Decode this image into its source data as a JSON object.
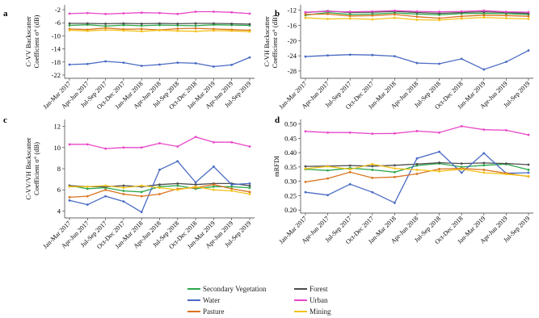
{
  "chart_data": [
    {
      "panel_label": "a",
      "type": "line",
      "ylabel": "C-VV Backscatter Coefficient σ° (dB)",
      "yticks": [
        -2,
        -6,
        -10,
        -14,
        -18,
        -22
      ],
      "ylim": [
        -22.5,
        -1
      ],
      "x": [
        "Jan-Mar 2017",
        "Apr-Jun 2017",
        "Jul-Sep 2017",
        "Oct-Dec 2017",
        "Jan-Mar 2018",
        "Apr-Jun 2018",
        "Jul-Sep 2018",
        "Oct-Dec 2018",
        "Jan-Mar 2019",
        "Apr-Jun 2019",
        "Jul-Sep 2019"
      ],
      "series": [
        {
          "name": "Secondary Vegetation",
          "color": "#2aa84a",
          "values": [
            -6.8,
            -6.6,
            -7.0,
            -6.7,
            -6.9,
            -6.7,
            -6.8,
            -6.9,
            -6.6,
            -6.7,
            -6.8
          ]
        },
        {
          "name": "Forest",
          "color": "#4d4d4d",
          "values": [
            -6.2,
            -6.2,
            -6.3,
            -6.2,
            -6.3,
            -6.2,
            -6.3,
            -6.2,
            -6.2,
            -6.3,
            -6.4
          ]
        },
        {
          "name": "Water",
          "color": "#4a6bc4",
          "values": [
            -18.8,
            -18.6,
            -17.8,
            -18.2,
            -19.2,
            -18.8,
            -18.2,
            -18.4,
            -19.4,
            -18.9,
            -16.6
          ]
        },
        {
          "name": "Urban",
          "color": "#e846c8",
          "values": [
            -3.2,
            -3.0,
            -3.3,
            -3.1,
            -2.9,
            -3.0,
            -3.3,
            -2.6,
            -2.6,
            -2.8,
            -3.2
          ]
        },
        {
          "name": "Pasture",
          "color": "#d9741e",
          "values": [
            -7.9,
            -8.1,
            -7.6,
            -8.0,
            -7.9,
            -8.2,
            -7.8,
            -7.7,
            -7.9,
            -8.1,
            -8.3
          ]
        },
        {
          "name": "Mining",
          "color": "#f2c21b",
          "values": [
            -8.3,
            -8.5,
            -8.2,
            -8.4,
            -8.6,
            -8.3,
            -8.5,
            -8.6,
            -8.4,
            -8.5,
            -8.7
          ]
        }
      ]
    },
    {
      "panel_label": "b",
      "type": "line",
      "ylabel": "C-VH Backscatter Coefficient σ° (dB)",
      "yticks": [
        -12,
        -16,
        -20,
        -24,
        -28
      ],
      "ylim": [
        -29.5,
        -11
      ],
      "x": [
        "Jan-Mar 2017",
        "Apr-Jun 2017",
        "Jul-Sep 2017",
        "Oct-Dec 2017",
        "Jan-Mar 2018",
        "Apr-Jun 2018",
        "Jul-Sep 2018",
        "Oct-Dec 2018",
        "Jan-Mar 2019",
        "Apr-Jun 2019",
        "Jul-Sep 2019"
      ],
      "series": [
        {
          "name": "Secondary Vegetation",
          "color": "#2aa84a",
          "values": [
            -13.3,
            -12.6,
            -13.1,
            -13.0,
            -12.7,
            -13.0,
            -13.2,
            -12.9,
            -12.8,
            -12.9,
            -13.1
          ]
        },
        {
          "name": "Forest",
          "color": "#4d4d4d",
          "values": [
            -12.6,
            -12.2,
            -12.6,
            -12.5,
            -12.3,
            -12.6,
            -12.8,
            -12.6,
            -12.4,
            -12.6,
            -12.8
          ]
        },
        {
          "name": "Water",
          "color": "#4a6bc4",
          "values": [
            -24.2,
            -23.9,
            -23.7,
            -23.8,
            -24.1,
            -25.9,
            -26.1,
            -24.8,
            -27.6,
            -25.6,
            -22.6
          ]
        },
        {
          "name": "Urban",
          "color": "#e846c8",
          "values": [
            -12.5,
            -12.3,
            -12.4,
            -12.3,
            -12.1,
            -12.3,
            -12.4,
            -12.3,
            -12.1,
            -12.4,
            -12.5
          ]
        },
        {
          "name": "Pasture",
          "color": "#d9741e",
          "values": [
            -13.1,
            -13.0,
            -13.5,
            -13.4,
            -13.1,
            -13.7,
            -14.1,
            -13.6,
            -13.3,
            -13.4,
            -13.6
          ]
        },
        {
          "name": "Mining",
          "color": "#f2c21b",
          "values": [
            -14.0,
            -14.3,
            -14.2,
            -14.4,
            -14.0,
            -14.5,
            -14.6,
            -14.2,
            -13.9,
            -14.1,
            -14.3
          ]
        }
      ]
    },
    {
      "panel_label": "c",
      "type": "line",
      "ylabel": "C-VV/VH Backscatter Coefficient σ° (dB)",
      "yticks": [
        12,
        10,
        8,
        6,
        4
      ],
      "ylim": [
        3.5,
        12.5
      ],
      "x": [
        "Jan-Mar 2017",
        "Apr-Jun 2017",
        "Jul-Sep 2017",
        "Oct-Dec 2017",
        "Jan-Mar 2018",
        "Apr-Jun 2018",
        "Jul-Sep 2018",
        "Oct-Dec 2018",
        "Jan-Mar 2019",
        "Apr-Jun 2019",
        "Jul-Sep 2019"
      ],
      "series": [
        {
          "name": "Secondary Vegetation",
          "color": "#2aa84a",
          "values": [
            6.4,
            6.1,
            6.2,
            5.9,
            5.8,
            6.3,
            6.4,
            6.1,
            6.3,
            6.3,
            6.2
          ]
        },
        {
          "name": "Forest",
          "color": "#4d4d4d",
          "values": [
            6.4,
            6.3,
            6.3,
            6.4,
            6.3,
            6.5,
            6.6,
            6.5,
            6.6,
            6.6,
            6.4
          ]
        },
        {
          "name": "Water",
          "color": "#4a6bc4",
          "values": [
            5.0,
            4.6,
            5.4,
            4.9,
            3.9,
            7.9,
            8.7,
            6.7,
            8.2,
            6.5,
            6.6
          ]
        },
        {
          "name": "Urban",
          "color": "#e846c8",
          "values": [
            10.3,
            10.3,
            9.9,
            10.0,
            10.0,
            10.4,
            10.1,
            11.0,
            10.5,
            10.5,
            10.1
          ]
        },
        {
          "name": "Pasture",
          "color": "#d9741e",
          "values": [
            5.3,
            5.4,
            6.0,
            5.6,
            5.4,
            5.6,
            6.1,
            6.2,
            6.5,
            6.1,
            5.8
          ]
        },
        {
          "name": "Mining",
          "color": "#f2c21b",
          "values": [
            6.3,
            6.3,
            6.4,
            6.2,
            6.4,
            6.2,
            6.0,
            6.3,
            6.0,
            5.9,
            5.6
          ]
        }
      ]
    },
    {
      "panel_label": "d",
      "type": "line",
      "ylabel": "mRFDI",
      "yticks": [
        "0.50",
        "0.45",
        "0.40",
        "0.35",
        "0.30",
        "0.25",
        "0.20"
      ],
      "ylim": [
        0.195,
        0.51
      ],
      "x": [
        "Jan-Mar 2017",
        "Apr-Jun 2017",
        "Jul-Sep 2017",
        "Oct-Dec 2017",
        "Jan-Mar 2018",
        "Apr-Jun 2018",
        "Jul-Sep 2018",
        "Oct-Dec 2018",
        "Jan-Mar 2019",
        "Apr-Jun 2019",
        "Jul-Sep 2019"
      ],
      "series": [
        {
          "name": "Secondary Vegetation",
          "color": "#2aa84a",
          "values": [
            0.342,
            0.338,
            0.346,
            0.34,
            0.332,
            0.355,
            0.362,
            0.35,
            0.356,
            0.36,
            0.34
          ]
        },
        {
          "name": "Forest",
          "color": "#4d4d4d",
          "values": [
            0.352,
            0.353,
            0.355,
            0.353,
            0.356,
            0.36,
            0.365,
            0.362,
            0.364,
            0.362,
            0.358
          ]
        },
        {
          "name": "Water",
          "color": "#4a6bc4",
          "values": [
            0.262,
            0.252,
            0.29,
            0.262,
            0.225,
            0.38,
            0.403,
            0.33,
            0.398,
            0.328,
            0.33
          ]
        },
        {
          "name": "Urban",
          "color": "#e846c8",
          "values": [
            0.474,
            0.47,
            0.47,
            0.466,
            0.467,
            0.475,
            0.47,
            0.492,
            0.48,
            0.478,
            0.462
          ]
        },
        {
          "name": "Pasture",
          "color": "#d9741e",
          "values": [
            0.298,
            0.31,
            0.332,
            0.312,
            0.315,
            0.326,
            0.343,
            0.345,
            0.34,
            0.328,
            0.317
          ]
        },
        {
          "name": "Mining",
          "color": "#f2c21b",
          "values": [
            0.344,
            0.352,
            0.342,
            0.36,
            0.345,
            0.34,
            0.335,
            0.342,
            0.33,
            0.325,
            0.318
          ]
        }
      ]
    }
  ],
  "legend": {
    "items": [
      {
        "name": "Secondary Vegetation",
        "color": "#2aa84a"
      },
      {
        "name": "Forest",
        "color": "#4d4d4d"
      },
      {
        "name": "Water",
        "color": "#4a6bc4"
      },
      {
        "name": "Urban",
        "color": "#e846c8"
      },
      {
        "name": "Pasture",
        "color": "#d9741e"
      },
      {
        "name": "Mining",
        "color": "#f2c21b"
      }
    ]
  }
}
